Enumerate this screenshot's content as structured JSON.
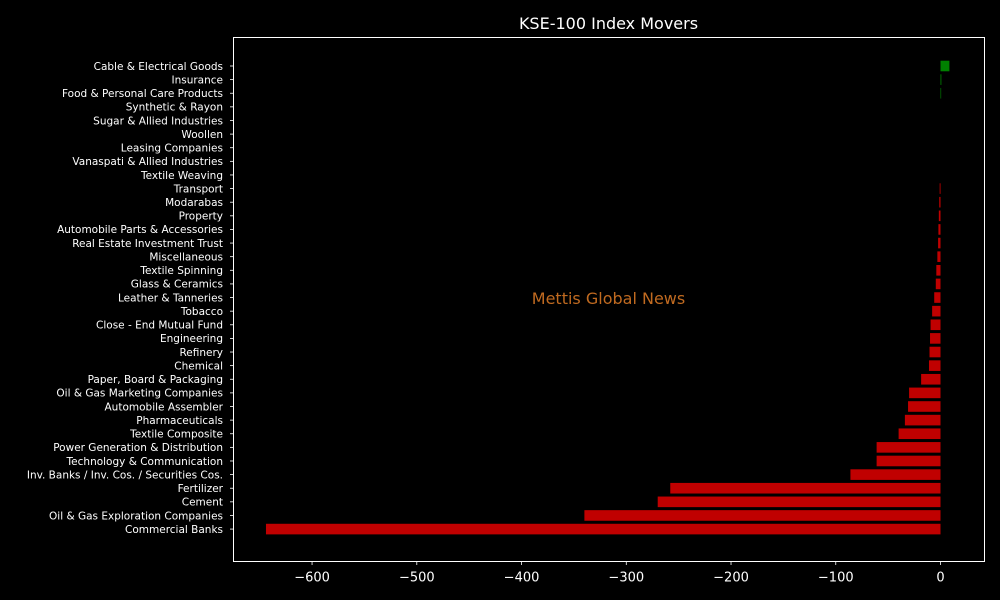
{
  "chart_data": {
    "type": "bar",
    "orientation": "horizontal",
    "title": "KSE-100 Index Movers",
    "xlabel": "",
    "ylabel": "",
    "watermark": "Mettis Global News",
    "xlim": [
      -675,
      42
    ],
    "xticks": [
      -600,
      -500,
      -400,
      -300,
      -200,
      -100,
      0
    ],
    "xtick_labels": [
      "−600",
      "−500",
      "−400",
      "−300",
      "−200",
      "−100",
      "0"
    ],
    "grid": false,
    "colors": {
      "background": "#000000",
      "positive": "#008000",
      "negative": "#c00000",
      "axes": "#ffffff",
      "text": "#ffffff",
      "watermark": "#c06a20"
    },
    "categories": [
      "Cable & Electrical Goods",
      "Insurance",
      "Food & Personal Care Products",
      "Synthetic & Rayon",
      "Sugar & Allied Industries",
      "Woollen",
      "Leasing Companies",
      "Vanaspati & Allied Industries",
      "Textile Weaving",
      "Transport",
      "Modarabas",
      "Property",
      "Automobile Parts & Accessories",
      "Real Estate Investment Trust",
      "Miscellaneous",
      "Textile Spinning",
      "Glass & Ceramics",
      "Leather & Tanneries",
      "Tobacco",
      "Close - End Mutual Fund",
      "Engineering",
      "Refinery",
      "Chemical",
      "Paper, Board & Packaging",
      "Oil & Gas Marketing Companies",
      "Automobile Assembler",
      "Pharmaceuticals",
      "Textile Composite",
      "Power Generation & Distribution",
      "Technology & Communication",
      "Inv. Banks / Inv. Cos. / Securities Cos.",
      "Fertilizer",
      "Cement",
      "Oil & Gas Exploration Companies",
      "Commercial Banks"
    ],
    "values": [
      8.5,
      0.8,
      0.6,
      0,
      0,
      0,
      0,
      0,
      0,
      -0.8,
      -1.2,
      -1.6,
      -2,
      -2.3,
      -3,
      -4,
      -4.5,
      -6,
      -8,
      -9.5,
      -10,
      -10.5,
      -11,
      -18.5,
      -30,
      -31,
      -34,
      -40,
      -61,
      -61,
      -86,
      -258,
      -270,
      -340,
      -644
    ]
  }
}
